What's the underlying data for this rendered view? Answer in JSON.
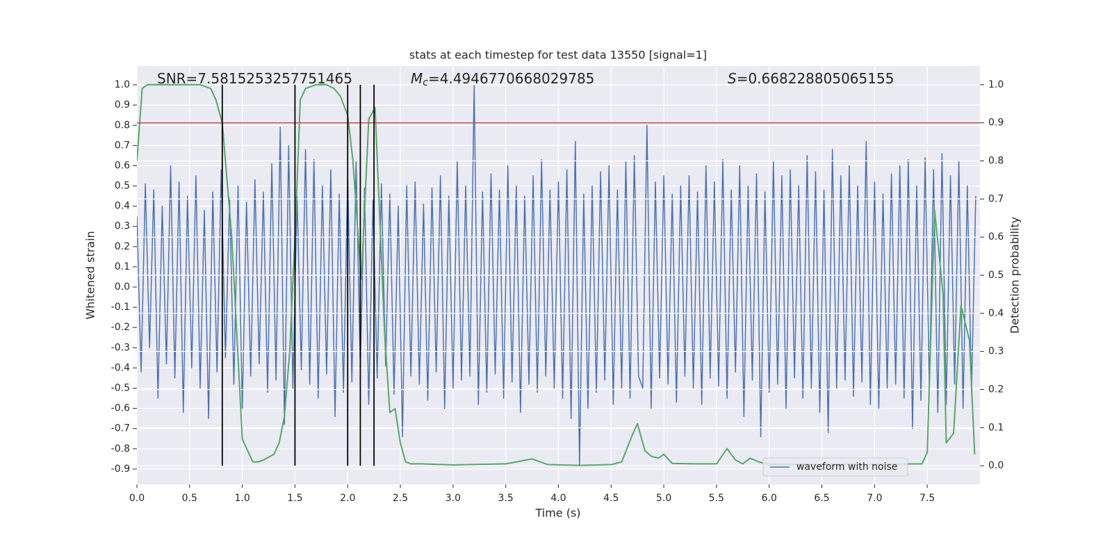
{
  "chart_data": {
    "type": "line",
    "title": "stats at each timestep for test data 13550 [signal=1]",
    "xlabel": "Time (s)",
    "ylabel": "Whitened strain",
    "y2label": "Detection probability",
    "xlim": [
      0,
      8
    ],
    "ylim": [
      -0.976,
      1.093
    ],
    "y2lim": [
      -0.049,
      1.049
    ],
    "xticks": [
      {
        "value": 0,
        "label": "0.0"
      },
      0.5,
      {
        "value": 1,
        "label": "1.0"
      },
      1.5,
      {
        "value": 2,
        "label": "2.0"
      },
      2.5,
      {
        "value": 3,
        "label": "3.0"
      },
      3.5,
      {
        "value": 4,
        "label": "4.0"
      },
      4.5,
      {
        "value": 5,
        "label": "5.0"
      },
      5.5,
      {
        "value": 6,
        "label": "6.0"
      },
      6.5,
      {
        "value": 7,
        "label": "7.0"
      },
      7.5
    ],
    "yticks": [
      -0.9,
      -0.8,
      -0.7,
      -0.6,
      -0.5,
      -0.4,
      -0.3,
      -0.2,
      -0.1,
      {
        "value": 0,
        "label": "0.0"
      },
      0.1,
      0.2,
      0.3,
      0.4,
      0.5,
      0.6,
      0.7,
      0.8,
      0.9,
      {
        "value": 1,
        "label": "1.0"
      }
    ],
    "y2ticks": [
      {
        "value": 0,
        "label": "0.0"
      },
      0.1,
      0.2,
      0.3,
      0.4,
      0.5,
      0.6,
      0.7,
      0.8,
      0.9,
      {
        "value": 1,
        "label": "1.0"
      }
    ],
    "grid": true,
    "legend": "lower right",
    "series": [
      {
        "name": "waveform with noise",
        "color": "#4c72b0",
        "x": [
          0,
          0.04,
          0.08,
          0.12,
          0.16,
          0.2,
          0.24,
          0.28,
          0.32,
          0.36,
          0.4,
          0.44,
          0.48,
          0.52,
          0.56,
          0.6,
          0.64,
          0.68,
          0.72,
          0.76,
          0.8,
          0.84,
          0.88,
          0.92,
          0.96,
          1.0,
          1.04,
          1.08,
          1.12,
          1.16,
          1.2,
          1.24,
          1.28,
          1.32,
          1.36,
          1.4,
          1.44,
          1.48,
          1.52,
          1.56,
          1.6,
          1.64,
          1.68,
          1.72,
          1.76,
          1.8,
          1.84,
          1.88,
          1.92,
          1.96,
          2.0,
          2.04,
          2.08,
          2.12,
          2.16,
          2.2,
          2.24,
          2.28,
          2.32,
          2.36,
          2.4,
          2.44,
          2.48,
          2.52,
          2.56,
          2.6,
          2.64,
          2.68,
          2.72,
          2.76,
          2.8,
          2.84,
          2.88,
          2.92,
          2.96,
          3.0,
          3.04,
          3.08,
          3.12,
          3.16,
          3.2,
          3.24,
          3.28,
          3.32,
          3.36,
          3.4,
          3.44,
          3.48,
          3.52,
          3.56,
          3.6,
          3.64,
          3.68,
          3.72,
          3.76,
          3.8,
          3.84,
          3.88,
          3.92,
          3.96,
          4.0,
          4.04,
          4.08,
          4.12,
          4.16,
          4.2,
          4.24,
          4.28,
          4.32,
          4.36,
          4.4,
          4.44,
          4.48,
          4.52,
          4.56,
          4.6,
          4.64,
          4.68,
          4.72,
          4.76,
          4.8,
          4.84,
          4.88,
          4.92,
          4.96,
          5.0,
          5.04,
          5.08,
          5.12,
          5.16,
          5.2,
          5.24,
          5.28,
          5.32,
          5.36,
          5.4,
          5.44,
          5.48,
          5.52,
          5.56,
          5.6,
          5.64,
          5.68,
          5.72,
          5.76,
          5.8,
          5.84,
          5.88,
          5.92,
          5.96,
          6.0,
          6.04,
          6.08,
          6.12,
          6.16,
          6.2,
          6.24,
          6.28,
          6.32,
          6.36,
          6.4,
          6.44,
          6.48,
          6.52,
          6.56,
          6.6,
          6.64,
          6.68,
          6.72,
          6.76,
          6.8,
          6.84,
          6.88,
          6.92,
          6.96,
          7.0,
          7.04,
          7.08,
          7.12,
          7.16,
          7.2,
          7.24,
          7.28,
          7.32,
          7.36,
          7.4,
          7.44,
          7.48,
          7.52,
          7.56,
          7.6,
          7.64,
          7.68,
          7.72,
          7.76,
          7.8,
          7.84,
          7.88,
          7.92,
          7.96
        ],
        "values": [
          0.35,
          -0.42,
          0.51,
          -0.3,
          0.48,
          -0.55,
          0.4,
          -0.38,
          0.6,
          -0.45,
          0.52,
          -0.62,
          0.45,
          -0.4,
          0.55,
          -0.5,
          0.38,
          -0.65,
          0.47,
          -0.42,
          0.58,
          -0.35,
          0.44,
          -0.48,
          0.5,
          -0.6,
          0.42,
          -0.44,
          0.53,
          -0.38,
          0.47,
          -0.52,
          0.61,
          -0.46,
          0.79,
          -0.68,
          0.7,
          -0.5,
          0.45,
          -0.41,
          0.68,
          -0.48,
          0.63,
          -0.55,
          0.5,
          -0.43,
          0.58,
          -0.64,
          0.46,
          -0.52,
          0.55,
          -0.47,
          0.62,
          -0.4,
          0.49,
          -0.58,
          0.43,
          -0.45,
          0.51,
          -0.39,
          0.46,
          -0.53,
          0.4,
          -0.74,
          0.5,
          -0.44,
          0.52,
          -0.48,
          0.41,
          -0.56,
          0.49,
          -0.42,
          0.55,
          -0.6,
          0.45,
          -0.5,
          0.62,
          -0.46,
          0.5,
          -0.44,
          1.0,
          -0.58,
          0.47,
          -0.52,
          0.56,
          -0.43,
          0.48,
          -0.55,
          0.6,
          -0.47,
          0.5,
          -0.62,
          0.45,
          -0.48,
          0.55,
          -0.52,
          0.63,
          -0.44,
          0.48,
          -0.5,
          0.52,
          -0.55,
          0.58,
          -0.65,
          0.72,
          -0.88,
          0.46,
          -0.6,
          0.5,
          -0.52,
          0.57,
          -0.46,
          0.6,
          -0.58,
          0.48,
          -0.5,
          0.62,
          -0.55,
          0.65,
          -0.44,
          -0.5,
          0.8,
          -0.6,
          0.52,
          -0.45,
          0.55,
          -0.48,
          0.46,
          -0.57,
          0.5,
          -0.44,
          0.55,
          -0.5,
          0.47,
          -0.58,
          0.6,
          -0.45,
          0.52,
          -0.49,
          0.63,
          -0.55,
          0.48,
          -0.42,
          0.6,
          -0.64,
          0.5,
          -0.46,
          0.56,
          -0.74,
          0.47,
          -0.52,
          0.62,
          -0.48,
          0.55,
          -0.6,
          0.58,
          -0.45,
          0.5,
          -0.55,
          0.65,
          -0.5,
          0.57,
          -0.62,
          0.48,
          -0.72,
          0.68,
          -0.5,
          0.55,
          -0.46,
          0.6,
          -0.54,
          0.5,
          -0.47,
          0.72,
          -0.58,
          0.52,
          -0.6,
          0.46,
          -0.5,
          0.56,
          -0.48,
          0.6,
          -0.55,
          0.63,
          -0.7,
          0.5,
          -0.56,
          0.64,
          -0.5,
          0.58,
          -0.62,
          0.66,
          -0.58,
          0.55,
          -0.48,
          0.62,
          -0.6,
          0.5,
          -0.52,
          0.45
        ]
      },
      {
        "color": "#55a868",
        "axis": "y2",
        "x": [
          0,
          0.05,
          0.1,
          0.6,
          0.7,
          0.75,
          0.81,
          0.9,
          1.0,
          1.05,
          1.1,
          1.15,
          1.2,
          1.3,
          1.35,
          1.4,
          1.45,
          1.5,
          1.55,
          1.6,
          1.7,
          1.8,
          1.87,
          1.93,
          2.0,
          2.05,
          2.1,
          2.13,
          2.2,
          2.26,
          2.35,
          2.4,
          2.45,
          2.5,
          2.55,
          2.6,
          2.7,
          3.0,
          3.5,
          3.6,
          3.75,
          3.9,
          4.2,
          4.5,
          4.6,
          4.7,
          4.75,
          4.82,
          4.88,
          4.95,
          5.0,
          5.08,
          5.3,
          5.5,
          5.6,
          5.68,
          5.75,
          5.82,
          5.9,
          6.0,
          7.0,
          7.45,
          7.5,
          7.57,
          7.65,
          7.68,
          7.75,
          7.82,
          7.9,
          7.95
        ],
        "values": [
          0.8,
          0.99,
          1.0,
          1.0,
          0.99,
          0.96,
          0.9,
          0.6,
          0.07,
          0.04,
          0.01,
          0.01,
          0.015,
          0.03,
          0.06,
          0.13,
          0.3,
          0.6,
          0.96,
          0.99,
          1.0,
          1.0,
          0.99,
          0.97,
          0.92,
          0.8,
          0.6,
          0.49,
          0.91,
          0.94,
          0.35,
          0.14,
          0.15,
          0.06,
          0.01,
          0.005,
          0.005,
          0.002,
          0.005,
          0.01,
          0.018,
          0.003,
          0.001,
          0.003,
          0.01,
          0.08,
          0.11,
          0.04,
          0.025,
          0.02,
          0.03,
          0.006,
          0.005,
          0.005,
          0.045,
          0.015,
          0.005,
          0.02,
          0.01,
          0.004,
          0.004,
          0.005,
          0.035,
          0.67,
          0.45,
          0.06,
          0.085,
          0.42,
          0.33,
          0.03
        ]
      }
    ],
    "threshold": {
      "value": 0.9,
      "axis": "y2",
      "color": "#c44e52"
    },
    "vlines": {
      "x": [
        0.81,
        1.5,
        2.0,
        2.12,
        2.25
      ],
      "span": [
        0,
        1
      ],
      "axis": "y2",
      "color": "#000000"
    },
    "annotations": [
      {
        "text": "SNR=7.5815253257751465"
      },
      {
        "symbol": "M",
        "subscript": "c",
        "text": "=4.4946770668029785"
      },
      {
        "symbol": "S",
        "text": "=0.668228805065155"
      }
    ]
  }
}
